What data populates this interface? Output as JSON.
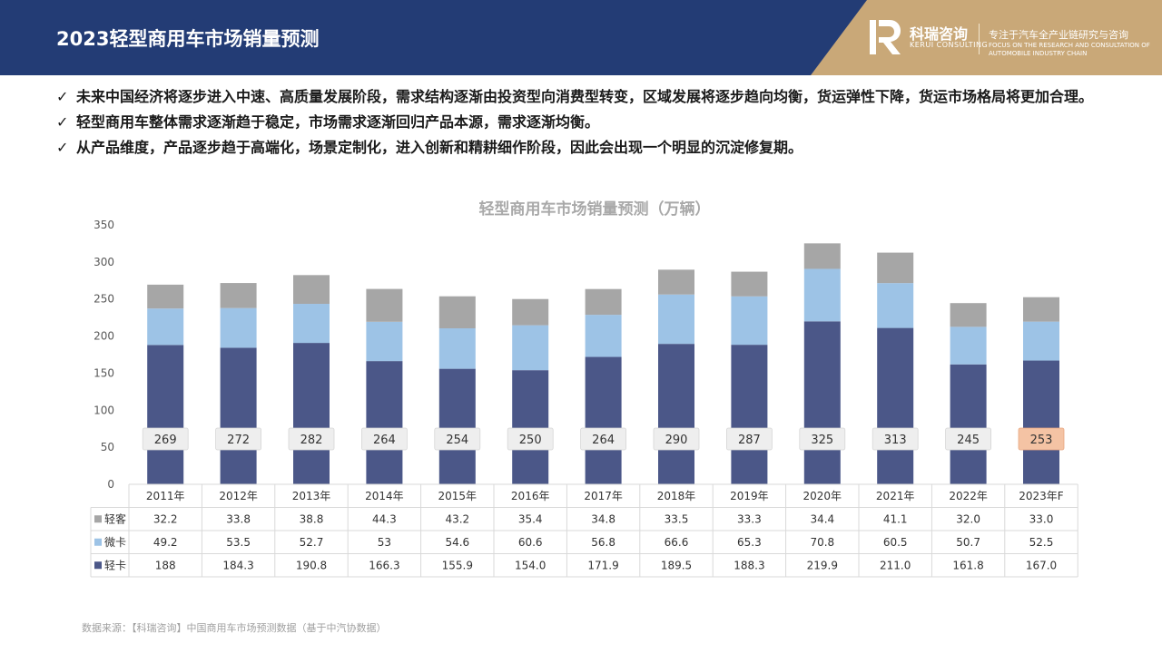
{
  "header": {
    "title": "2023轻型商用车市场销量预测",
    "logo_name": "科瑞咨询",
    "logo_sub": "KERUI CONSULTING",
    "tagline": "专注于汽车全产业链研究与咨询",
    "tagline_en": "FOCUS ON THE RESEARCH AND CONSULTATION OF AUTOMOBILE INDUSTRY CHAIN"
  },
  "bullets": [
    "未来中国经济将逐步进入中速、高质量发展阶段，需求结构逐渐由投资型向消费型转变，区域发展将逐步趋向均衡，货运弹性下降，货运市场格局将更加合理。",
    "轻型商用车整体需求逐渐趋于稳定，市场需求逐渐回归产品本源，需求逐渐均衡。",
    "从产品维度，产品逐步趋于高端化，场景定制化，进入创新和精耕细作阶段，因此会出现一个明显的沉淀修复期。"
  ],
  "source": "数据来源：【科瑞咨询】中国商用车市场预测数据（基于中汽协数据）",
  "chart_data": {
    "type": "bar",
    "stacked": true,
    "title": "轻型商用车市场销量预测（万辆）",
    "categories": [
      "2011年",
      "2012年",
      "2013年",
      "2014年",
      "2015年",
      "2016年",
      "2017年",
      "2018年",
      "2019年",
      "2020年",
      "2021年",
      "2022年",
      "2023年F"
    ],
    "ylim": [
      0,
      350
    ],
    "yticks": [
      0,
      50,
      100,
      150,
      200,
      250,
      300,
      350
    ],
    "totals": [
      "269",
      "272",
      "282",
      "264",
      "254",
      "250",
      "264",
      "290",
      "287",
      "325",
      "313",
      "245",
      "253"
    ],
    "highlight_index": 12,
    "series": [
      {
        "name": "轻卡",
        "color": "#4b5788",
        "values": [
          188,
          184.3,
          190.8,
          166.3,
          155.9,
          154.0,
          171.9,
          189.5,
          188.3,
          219.9,
          211.0,
          161.8,
          167.0
        ],
        "labels": [
          "188",
          "184.3",
          "190.8",
          "166.3",
          "155.9",
          "154.0",
          "171.9",
          "189.5",
          "188.3",
          "219.9",
          "211.0",
          "161.8",
          "167.0"
        ]
      },
      {
        "name": "微卡",
        "color": "#9dc3e6",
        "values": [
          49.2,
          53.5,
          52.7,
          53,
          54.6,
          60.6,
          56.8,
          66.6,
          65.3,
          70.8,
          60.5,
          50.7,
          52.5
        ],
        "labels": [
          "49.2",
          "53.5",
          "52.7",
          "53",
          "54.6",
          "60.6",
          "56.8",
          "66.6",
          "65.3",
          "70.8",
          "60.5",
          "50.7",
          "52.5"
        ]
      },
      {
        "name": "轻客",
        "color": "#a6a6a6",
        "values": [
          32.2,
          33.8,
          38.8,
          44.3,
          43.2,
          35.4,
          34.8,
          33.5,
          33.3,
          34.4,
          41.1,
          32.0,
          33.0
        ],
        "labels": [
          "32.2",
          "33.8",
          "38.8",
          "44.3",
          "43.2",
          "35.4",
          "34.8",
          "33.5",
          "33.3",
          "34.4",
          "41.1",
          "32.0",
          "33.0"
        ]
      }
    ],
    "table_row_order": [
      2,
      1,
      0
    ]
  }
}
